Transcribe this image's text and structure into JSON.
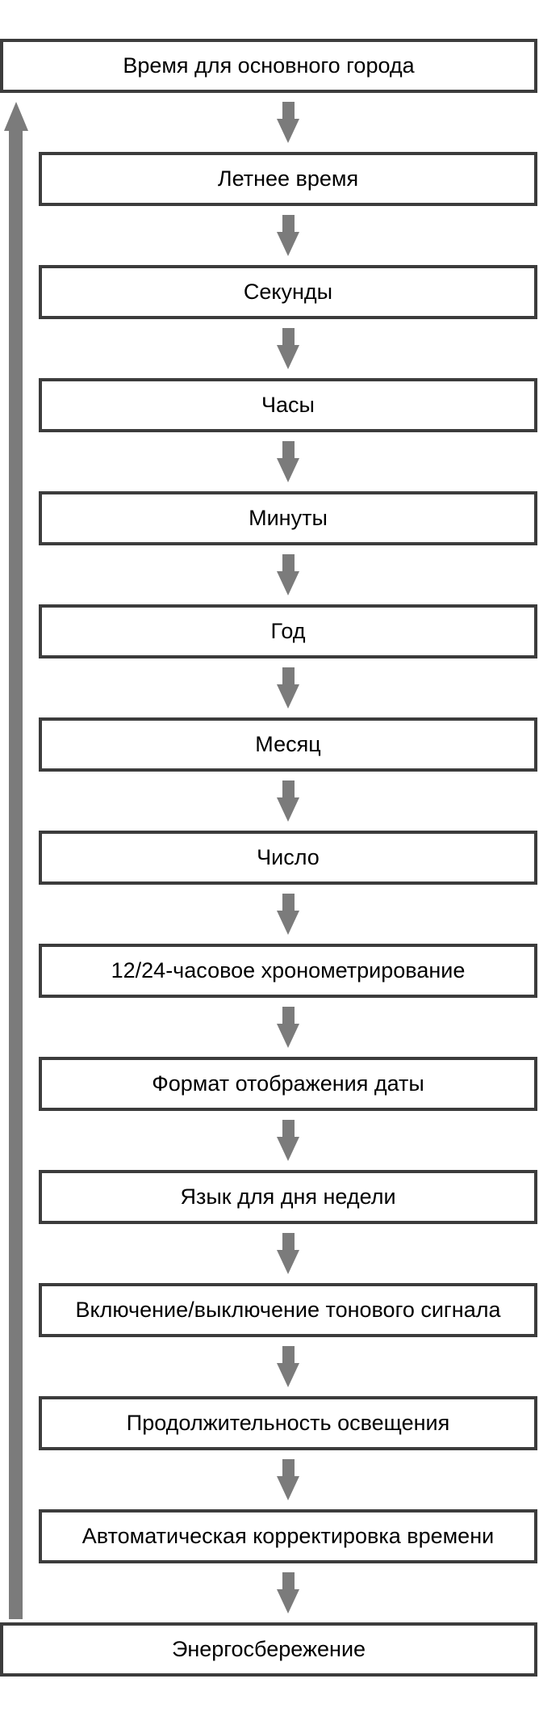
{
  "colors": {
    "arrow": "#7b7b7b",
    "border": "#3c3c3c",
    "bg": "#ffffff",
    "text": "#000000"
  },
  "icons": {
    "up_arrow": "up-arrow-icon (return loop from last mode to first)",
    "down_arrow": "down-arrow-icon (next mode)"
  },
  "steps": [
    {
      "label": "Время для основного города",
      "full_width": true
    },
    {
      "label": "Летнее время",
      "full_width": false
    },
    {
      "label": "Секунды",
      "full_width": false
    },
    {
      "label": "Часы",
      "full_width": false
    },
    {
      "label": "Минуты",
      "full_width": false
    },
    {
      "label": "Год",
      "full_width": false
    },
    {
      "label": "Месяц",
      "full_width": false
    },
    {
      "label": "Число",
      "full_width": false
    },
    {
      "label": "12/24-часовое хронометрирование",
      "full_width": false
    },
    {
      "label": "Формат отображения даты",
      "full_width": false
    },
    {
      "label": "Язык для дня недели",
      "full_width": false
    },
    {
      "label": "Включение/выключение тонового сигнала",
      "full_width": false
    },
    {
      "label": "Продолжительность освещения",
      "full_width": false
    },
    {
      "label": "Автоматическая корректировка времени",
      "full_width": false
    },
    {
      "label": "Энергосбережение",
      "full_width": true
    }
  ]
}
